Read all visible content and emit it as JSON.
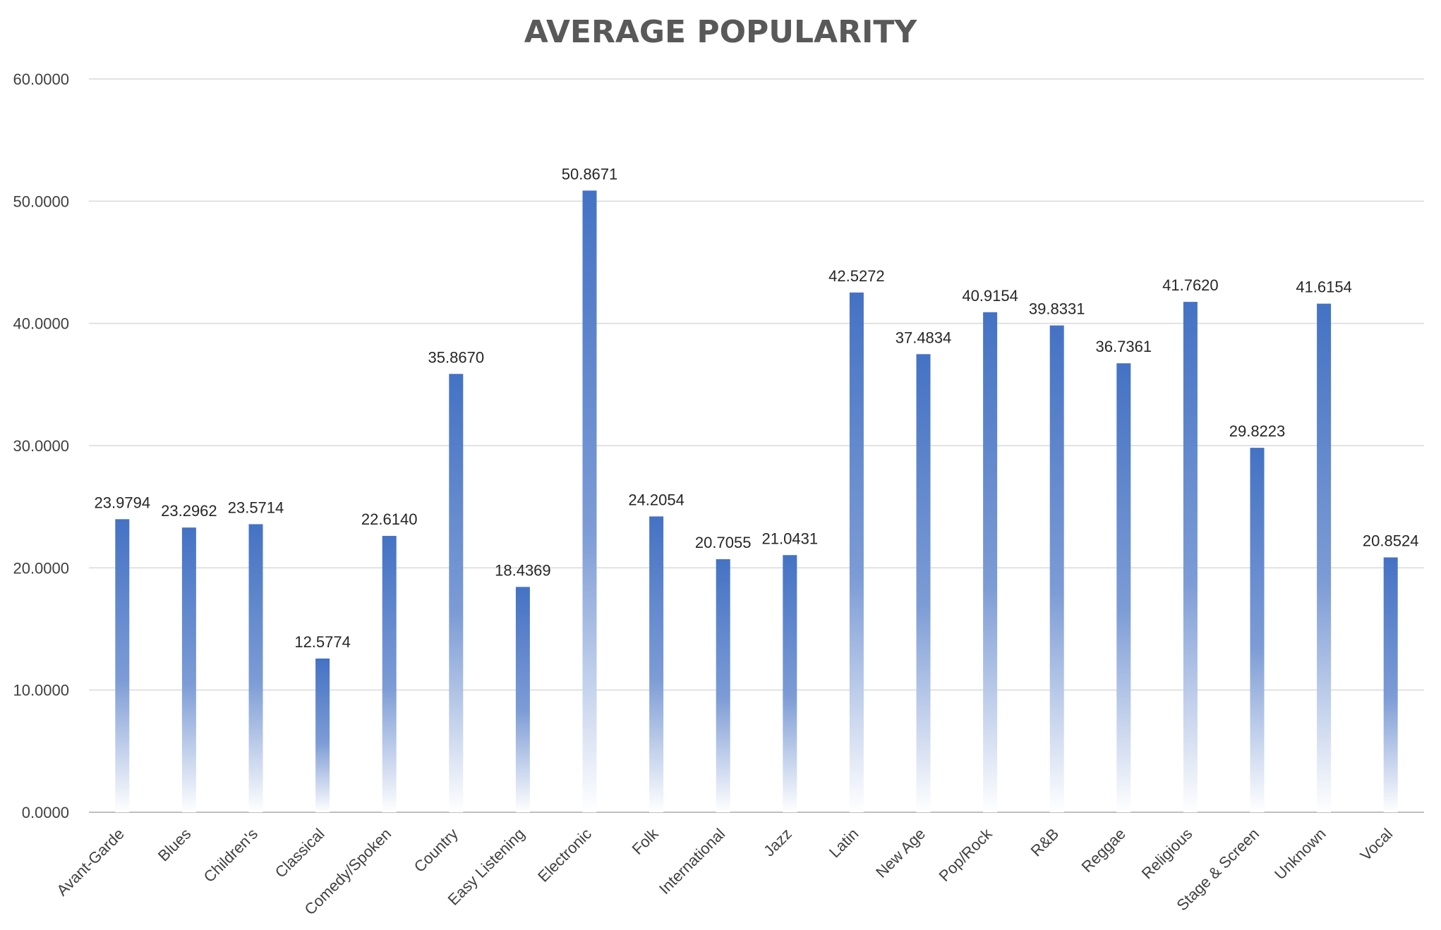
{
  "chart_data": {
    "type": "bar",
    "title": "AVERAGE POPULARITY",
    "xlabel": "",
    "ylabel": "",
    "ylim": [
      0,
      60
    ],
    "yticks": [
      0,
      10,
      20,
      30,
      40,
      50,
      60
    ],
    "ytick_labels": [
      "0.0000",
      "10.0000",
      "20.0000",
      "30.0000",
      "40.0000",
      "50.0000",
      "60.0000"
    ],
    "grid": true,
    "legend": "none",
    "bar_color_top": "#4472C4",
    "bar_color_bottom": "#ffffff",
    "categories": [
      "Avant-Garde",
      "Blues",
      "Children's",
      "Classical",
      "Comedy/Spoken",
      "Country",
      "Easy Listening",
      "Electronic",
      "Folk",
      "International",
      "Jazz",
      "Latin",
      "New Age",
      "Pop/Rock",
      "R&B",
      "Reggae",
      "Religious",
      "Stage & Screen",
      "Unknown",
      "Vocal"
    ],
    "values": [
      23.9794,
      23.2962,
      23.5714,
      12.5774,
      22.614,
      35.867,
      18.4369,
      50.8671,
      24.2054,
      20.7055,
      21.0431,
      42.5272,
      37.4834,
      40.9154,
      39.8331,
      36.7361,
      41.762,
      29.8223,
      41.6154,
      20.8524
    ],
    "value_labels": [
      "23.9794",
      "23.2962",
      "23.5714",
      "12.5774",
      "22.6140",
      "35.8670",
      "18.4369",
      "50.8671",
      "24.2054",
      "20.7055",
      "21.0431",
      "42.5272",
      "37.4834",
      "40.9154",
      "39.8331",
      "36.7361",
      "41.7620",
      "29.8223",
      "41.6154",
      "20.8524"
    ]
  }
}
